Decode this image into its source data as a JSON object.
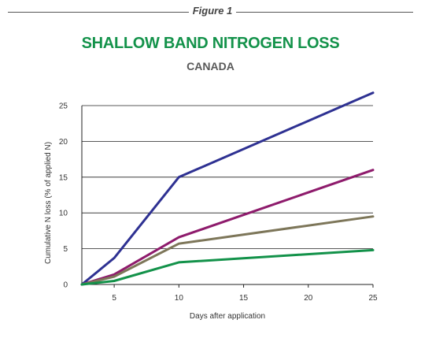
{
  "header": {
    "figure_label": "Figure 1"
  },
  "chart_data": {
    "type": "line",
    "title": "SHALLOW BAND NITROGEN LOSS",
    "subtitle": "CANADA",
    "xlabel": "Days after application",
    "ylabel": "Cumulative N loss (% of applied N)",
    "xlim": [
      2.5,
      25
    ],
    "ylim": [
      0,
      25
    ],
    "x_ticks": [
      5,
      10,
      15,
      20,
      25
    ],
    "y_ticks": [
      0,
      5,
      10,
      15,
      20,
      25
    ],
    "grid": "horizontal",
    "series": [
      {
        "color": "#2e3192",
        "points": [
          [
            2.5,
            0
          ],
          [
            5,
            3.7
          ],
          [
            10,
            15
          ],
          [
            25,
            26.8
          ]
        ]
      },
      {
        "color": "#8e1b6c",
        "points": [
          [
            2.5,
            0
          ],
          [
            5,
            1.4
          ],
          [
            10,
            6.6
          ],
          [
            25,
            16
          ]
        ]
      },
      {
        "color": "#7d7659",
        "points": [
          [
            2.5,
            0
          ],
          [
            5,
            1.1
          ],
          [
            10,
            5.7
          ],
          [
            25,
            9.5
          ]
        ]
      },
      {
        "color": "#13924a",
        "points": [
          [
            2.5,
            0
          ],
          [
            5,
            0.5
          ],
          [
            10,
            3.1
          ],
          [
            25,
            4.8
          ]
        ]
      }
    ]
  },
  "colors": {
    "title": "#13924a",
    "subtitle": "#595959",
    "grid": "#222222",
    "axis": "#222222"
  }
}
